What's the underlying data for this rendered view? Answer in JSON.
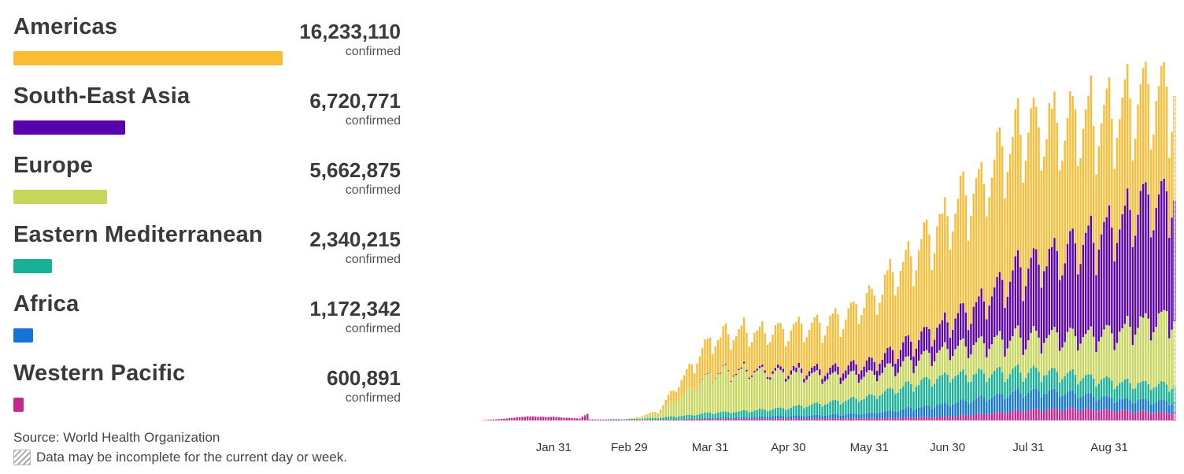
{
  "regions": [
    {
      "name": "Americas",
      "count": "16,233,110",
      "unit": "confirmed",
      "color": "#fbbc34",
      "value": 16233110
    },
    {
      "name": "South-East Asia",
      "count": "6,720,771",
      "unit": "confirmed",
      "color": "#5a00ac",
      "value": 6720771
    },
    {
      "name": "Europe",
      "count": "5,662,875",
      "unit": "confirmed",
      "color": "#c6d65a",
      "value": 5662875
    },
    {
      "name": "Eastern Mediterranean",
      "count": "2,340,215",
      "unit": "confirmed",
      "color": "#16b197",
      "value": 2340215
    },
    {
      "name": "Africa",
      "count": "1,172,342",
      "unit": "confirmed",
      "color": "#1473d6",
      "value": 1172342
    },
    {
      "name": "Western Pacific",
      "count": "600,891",
      "unit": "confirmed",
      "color": "#c8278f",
      "value": 600891
    }
  ],
  "footer": {
    "source": "Source: World Health Organization",
    "note": "Data may be incomplete for the current day or week."
  },
  "chart_data": {
    "type": "bar",
    "stacked": true,
    "title": "",
    "xlabel": "",
    "ylabel": "",
    "x_tick_labels": [
      "Jan 31",
      "Feb 29",
      "Mar 31",
      "Apr 30",
      "May 31",
      "Jun 30",
      "Jul 31",
      "Aug 31"
    ],
    "x_tick_days": [
      30,
      59,
      90,
      120,
      151,
      181,
      212,
      243
    ],
    "day_range": [
      1,
      268
    ],
    "ylim": [
      0,
      300000
    ],
    "grid": false,
    "legend": "left",
    "series": [
      {
        "name": "Western Pacific",
        "color": "#c8278f",
        "keyframes": [
          [
            1,
            0
          ],
          [
            10,
            1200
          ],
          [
            20,
            3200
          ],
          [
            30,
            2800
          ],
          [
            40,
            1500
          ],
          [
            43,
            5500
          ],
          [
            44,
            800
          ],
          [
            60,
            500
          ],
          [
            70,
            500
          ],
          [
            90,
            1200
          ],
          [
            120,
            1500
          ],
          [
            151,
            1500
          ],
          [
            181,
            3000
          ],
          [
            212,
            8000
          ],
          [
            230,
            9000
          ],
          [
            268,
            6000
          ]
        ]
      },
      {
        "name": "Africa",
        "color": "#1473d6",
        "keyframes": [
          [
            1,
            0
          ],
          [
            60,
            0
          ],
          [
            70,
            100
          ],
          [
            90,
            700
          ],
          [
            120,
            2000
          ],
          [
            151,
            4000
          ],
          [
            181,
            10000
          ],
          [
            212,
            15000
          ],
          [
            230,
            12000
          ],
          [
            245,
            9000
          ],
          [
            268,
            8500
          ]
        ]
      },
      {
        "name": "Eastern Mediterranean",
        "color": "#16b197",
        "keyframes": [
          [
            1,
            0
          ],
          [
            45,
            0
          ],
          [
            60,
            600
          ],
          [
            70,
            1500
          ],
          [
            80,
            2500
          ],
          [
            90,
            4000
          ],
          [
            105,
            4800
          ],
          [
            120,
            6500
          ],
          [
            151,
            13000
          ],
          [
            165,
            18000
          ],
          [
            181,
            22000
          ],
          [
            200,
            18000
          ],
          [
            212,
            16000
          ],
          [
            230,
            14000
          ],
          [
            268,
            13000
          ]
        ]
      },
      {
        "name": "Europe",
        "color": "#c6d65a",
        "keyframes": [
          [
            1,
            0
          ],
          [
            55,
            0
          ],
          [
            60,
            500
          ],
          [
            70,
            3500
          ],
          [
            80,
            17000
          ],
          [
            90,
            30000
          ],
          [
            100,
            32000
          ],
          [
            110,
            30000
          ],
          [
            120,
            27000
          ],
          [
            135,
            20000
          ],
          [
            151,
            17000
          ],
          [
            165,
            18000
          ],
          [
            181,
            21000
          ],
          [
            200,
            25000
          ],
          [
            212,
            27000
          ],
          [
            230,
            30000
          ],
          [
            245,
            39000
          ],
          [
            255,
            47000
          ],
          [
            265,
            54000
          ],
          [
            268,
            54000
          ]
        ]
      },
      {
        "name": "South-East Asia",
        "color": "#5a00ac",
        "keyframes": [
          [
            1,
            0
          ],
          [
            80,
            0
          ],
          [
            95,
            500
          ],
          [
            110,
            1500
          ],
          [
            120,
            3000
          ],
          [
            135,
            5000
          ],
          [
            151,
            9000
          ],
          [
            165,
            14000
          ],
          [
            181,
            21000
          ],
          [
            195,
            33000
          ],
          [
            205,
            49000
          ],
          [
            212,
            57000
          ],
          [
            225,
            65000
          ],
          [
            235,
            74000
          ],
          [
            245,
            86000
          ],
          [
            255,
            92000
          ],
          [
            265,
            96000
          ],
          [
            268,
            96000
          ]
        ]
      },
      {
        "name": "Americas",
        "color": "#fbbc34",
        "keyframes": [
          [
            1,
            0
          ],
          [
            55,
            0
          ],
          [
            62,
            200
          ],
          [
            70,
            1500
          ],
          [
            80,
            14000
          ],
          [
            90,
            27000
          ],
          [
            100,
            30000
          ],
          [
            110,
            30000
          ],
          [
            120,
            32000
          ],
          [
            130,
            35000
          ],
          [
            140,
            40000
          ],
          [
            151,
            49000
          ],
          [
            160,
            61000
          ],
          [
            170,
            70000
          ],
          [
            181,
            84000
          ],
          [
            195,
            96000
          ],
          [
            205,
            105000
          ],
          [
            212,
            108000
          ],
          [
            220,
            104000
          ],
          [
            230,
            99000
          ],
          [
            240,
            91000
          ],
          [
            250,
            86000
          ],
          [
            260,
            82000
          ],
          [
            268,
            80000
          ]
        ]
      }
    ]
  }
}
